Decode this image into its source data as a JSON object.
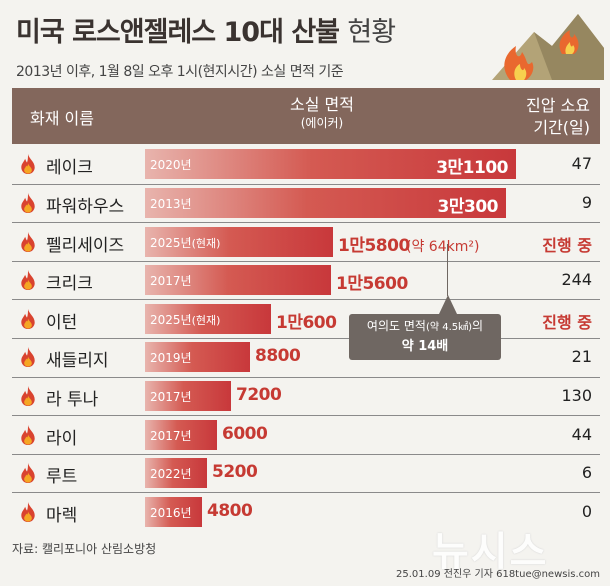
{
  "title_bold": "미국 로스앤젤레스 10대 산불",
  "title_light": "현황",
  "subtitle": "2013년 이후, 1월 8일 오후 1시(현지시간) 소실 면적 기준",
  "header": {
    "name": "화재 이름",
    "area": "소실 면적",
    "area_unit": "(에이커)",
    "days_line1": "진압 소요",
    "days_line2": "기간(일)"
  },
  "colors": {
    "bar": "#c8383b",
    "header": "#83675c",
    "accent": "#c63a33",
    "callout": "#6f6762"
  },
  "icons": {
    "row": "fire-icon"
  },
  "chart_data": {
    "type": "bar",
    "orientation": "horizontal",
    "xlabel": "소실 면적 (에이커)",
    "rows": [
      {
        "name": "레이크",
        "year": "2020년",
        "paren": "",
        "area": 31100,
        "label": "3만1100",
        "days": "47"
      },
      {
        "name": "파워하우스",
        "year": "2013년",
        "paren": "",
        "area": 30300,
        "label": "3만300",
        "days": "9"
      },
      {
        "name": "펠리세이즈",
        "year": "2025년",
        "paren": "(현재)",
        "area": 15800,
        "label": "1만5800",
        "days": "진행 중"
      },
      {
        "name": "크리크",
        "year": "2017년",
        "paren": "",
        "area": 15600,
        "label": "1만5600",
        "days": "244"
      },
      {
        "name": "이턴",
        "year": "2025년",
        "paren": "(현재)",
        "area": 10600,
        "label": "1만600",
        "days": "진행 중"
      },
      {
        "name": "새들리지",
        "year": "2019년",
        "paren": "",
        "area": 8800,
        "label": "8800",
        "days": "21"
      },
      {
        "name": "라 투나",
        "year": "2017년",
        "paren": "",
        "area": 7200,
        "label": "7200",
        "days": "130"
      },
      {
        "name": "라이",
        "year": "2017년",
        "paren": "",
        "area": 6000,
        "label": "6000",
        "days": "44"
      },
      {
        "name": "루트",
        "year": "2022년",
        "paren": "",
        "area": 5200,
        "label": "5200",
        "days": "6"
      },
      {
        "name": "마렉",
        "year": "2016년",
        "paren": "",
        "area": 4800,
        "label": "4800",
        "days": "0"
      }
    ],
    "palisades_extra": "(약 64km²)",
    "callout": {
      "line1": "여의도 면적",
      "line1_small": "(약 4.5㎢)",
      "line1_end": "의",
      "line2": "약 14배"
    }
  },
  "source": "자료: 캘리포니아 산림소방청",
  "credit": "25.01.09 전진우 기자 618tue@newsis.com",
  "watermark": "뉴시스"
}
